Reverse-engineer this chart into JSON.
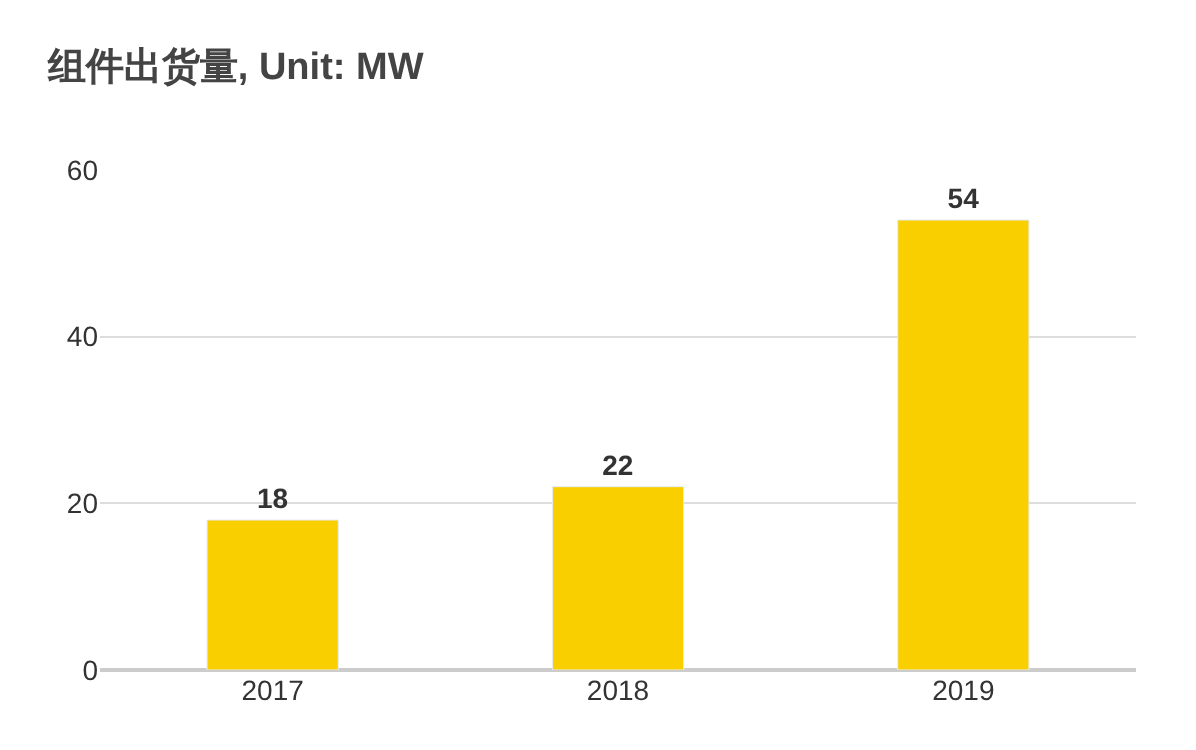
{
  "chart_data": {
    "type": "bar",
    "title": "组件出货量, Unit: MW",
    "categories": [
      "2017",
      "2018",
      "2019"
    ],
    "values": [
      18,
      22,
      54
    ],
    "color": "#f9cf00",
    "ylim": [
      0,
      60
    ],
    "yticks": [
      0,
      20,
      40,
      60
    ],
    "grid": "y",
    "data_labels": true
  }
}
